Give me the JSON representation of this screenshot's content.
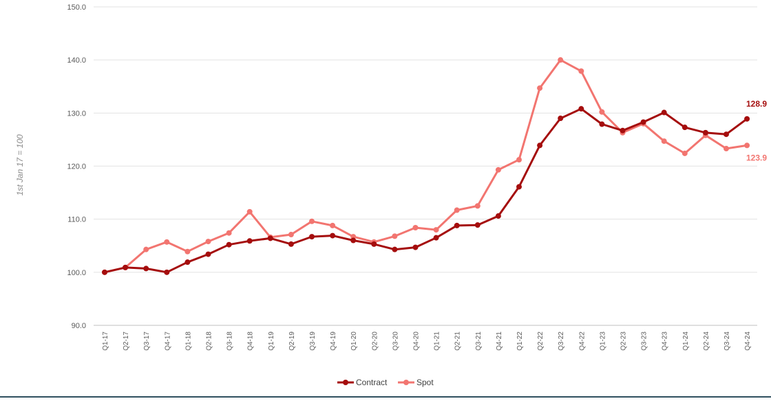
{
  "chart_data": {
    "type": "line",
    "ylabel": "1st Jan 17 = 100",
    "ylim": [
      90,
      150
    ],
    "yticks": [
      "90.0",
      "100.0",
      "110.0",
      "120.0",
      "130.0",
      "140.0",
      "150.0"
    ],
    "grid": true,
    "legend_position": "bottom",
    "categories": [
      "Q1-17",
      "Q2-17",
      "Q3-17",
      "Q4-17",
      "Q1-18",
      "Q2-18",
      "Q3-18",
      "Q4-18",
      "Q1-19",
      "Q2-19",
      "Q3-19",
      "Q4-19",
      "Q1-20",
      "Q2-20",
      "Q3-20",
      "Q4-20",
      "Q1-21",
      "Q2-21",
      "Q3-21",
      "Q4-21",
      "Q1-22",
      "Q2-22",
      "Q3-22",
      "Q4-22",
      "Q1-23",
      "Q2-23",
      "Q3-23",
      "Q4-23",
      "Q1-24",
      "Q2-24",
      "Q3-24",
      "Q4-24"
    ],
    "series": [
      {
        "name": "Contract",
        "color": "#a50d0d",
        "values": [
          100.0,
          100.9,
          100.7,
          100.0,
          101.9,
          103.4,
          105.2,
          105.9,
          106.4,
          105.3,
          106.7,
          106.9,
          106.0,
          105.3,
          104.3,
          104.7,
          106.5,
          108.8,
          108.9,
          110.6,
          116.1,
          123.9,
          129.0,
          130.8,
          127.9,
          126.7,
          128.3,
          130.1,
          127.3,
          126.3,
          126.0,
          128.9
        ],
        "end_label": "128.9"
      },
      {
        "name": "Spot",
        "color": "#f27570",
        "values": [
          100.0,
          100.9,
          104.3,
          105.7,
          103.9,
          105.8,
          107.4,
          111.4,
          106.6,
          107.1,
          109.6,
          108.8,
          106.7,
          105.7,
          106.8,
          108.4,
          108.0,
          111.7,
          112.5,
          119.3,
          121.2,
          134.7,
          140.0,
          137.9,
          130.2,
          126.3,
          128.0,
          124.7,
          122.4,
          125.8,
          123.3,
          123.9
        ],
        "end_label": "123.9"
      }
    ]
  }
}
